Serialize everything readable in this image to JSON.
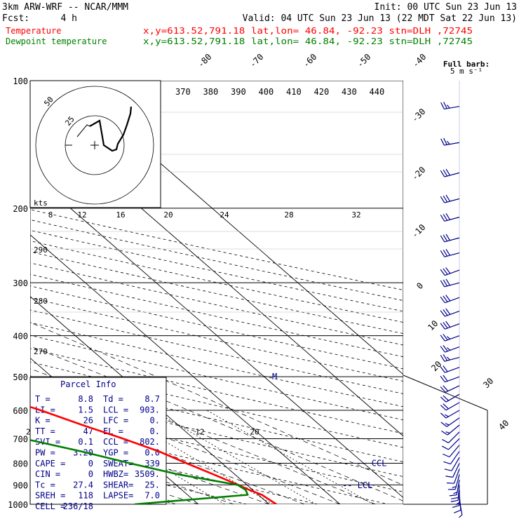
{
  "header": {
    "model": "3km ARW-WRF -- NCAR/MMM",
    "init": "Init: 00 UTC Sun 23 Jun 13",
    "fcst_label": "Fcst:",
    "fcst_value": "4 h",
    "valid": "Valid: 04 UTC Sun 23 Jun 13 (22 MDT Sat 22 Jun 13)"
  },
  "legend": {
    "temperature": {
      "label": "Temperature",
      "info": "x,y=613.52,791.18   lat,lon= 46.84, -92.23  stn=DLH ,72745",
      "color": "#ff0000"
    },
    "dewpoint": {
      "label": "Dewpoint temperature",
      "info": "x,y=613.52,791.18   lat,lon= 46.84, -92.23  stn=DLH ,72745",
      "color": "#008000"
    }
  },
  "barb_key": {
    "line1": "Full barb:",
    "line2": "5 m s⁻¹"
  },
  "hodograph": {
    "kts_label": "kts",
    "ring_labels": [
      "25",
      "50"
    ]
  },
  "parcel_info": {
    "title": "Parcel Info",
    "rows": [
      [
        "T  =",
        "8.8",
        "Td =",
        "8.7"
      ],
      [
        "LI =",
        "1.5",
        "LCL =",
        "903."
      ],
      [
        "K  =",
        "26",
        "LFC =",
        "0."
      ],
      [
        "TT =",
        "47",
        "EL  =",
        "0."
      ],
      [
        "SVI =",
        "0.1",
        "CCL =",
        "802."
      ],
      [
        "PW =",
        "3.20",
        "YGP =",
        "0.0"
      ],
      [
        "CAPE =",
        "0",
        "SWEAT=",
        "339"
      ],
      [
        "CIN =",
        "0",
        "HWBZ=",
        "3509."
      ],
      [
        "Tc =",
        "27.4",
        "SHEAR=",
        "25."
      ],
      [
        "SREH =",
        "118",
        "LAPSE=",
        "7.0"
      ],
      [
        "CELL =",
        "236/18",
        "",
        ""
      ]
    ]
  },
  "markers": {
    "ccl": "CCL",
    "lcl": "LCL",
    "m": "M"
  },
  "chart_data": {
    "type": "line",
    "title": "",
    "ylabel": "",
    "pressure_levels": [
      100,
      200,
      300,
      400,
      500,
      600,
      700,
      800,
      900,
      1000
    ],
    "isotherm_labels": [
      -80,
      -70,
      -60,
      -50,
      -40,
      -30,
      -20,
      -10,
      0,
      10,
      20,
      30,
      40
    ],
    "theta_labels": [
      370,
      380,
      390,
      400,
      410,
      420,
      430,
      440
    ],
    "theta_side_labels": [
      290,
      280,
      270
    ],
    "mixing_ratio_labels": [
      "2",
      "3",
      "5",
      "8",
      "12",
      "20"
    ],
    "hodo_speed_labels": [
      "8",
      "12",
      "16",
      "20",
      "24",
      "28",
      "32"
    ],
    "series": [
      {
        "name": "Temperature",
        "color": "#ff0000",
        "points": [
          [
            1000,
            11.0
          ],
          [
            950,
            10.5
          ],
          [
            925,
            9.5
          ],
          [
            900,
            8.8
          ],
          [
            850,
            7.0
          ],
          [
            800,
            5.0
          ],
          [
            750,
            3.0
          ],
          [
            700,
            0.0
          ],
          [
            650,
            -3.5
          ],
          [
            600,
            -7.0
          ],
          [
            550,
            -11.5
          ],
          [
            500,
            -15.0
          ],
          [
            450,
            -19.0
          ],
          [
            400,
            -23.5
          ],
          [
            350,
            -30.0
          ],
          [
            300,
            -36.5
          ],
          [
            250,
            -44.0
          ],
          [
            200,
            -52.5
          ],
          [
            175,
            -58.0
          ],
          [
            150,
            -61.0
          ],
          [
            125,
            -57.5
          ],
          [
            100,
            -54.0
          ]
        ]
      },
      {
        "name": "Dewpoint temperature",
        "color": "#008000",
        "points": [
          [
            1000,
            -9.0
          ],
          [
            950,
            8.5
          ],
          [
            925,
            9.0
          ],
          [
            900,
            8.7
          ],
          [
            850,
            2.0
          ],
          [
            800,
            -3.0
          ],
          [
            750,
            -8.0
          ],
          [
            700,
            -14.0
          ],
          [
            650,
            -13.0
          ],
          [
            600,
            -16.0
          ],
          [
            550,
            -18.5
          ],
          [
            500,
            -23.0
          ],
          [
            450,
            -33.0
          ],
          [
            400,
            -43.0
          ],
          [
            350,
            -41.0
          ],
          [
            300,
            -53.0
          ],
          [
            250,
            -62.0
          ],
          [
            200,
            -69.0
          ],
          [
            175,
            -75.0
          ],
          [
            150,
            -84.0
          ],
          [
            125,
            -86.0
          ],
          [
            100,
            -82.0
          ]
        ]
      }
    ],
    "wind_levels_hpa": [
      115,
      140,
      165,
      190,
      210,
      235,
      255,
      280,
      300,
      325,
      350,
      375,
      400,
      425,
      450,
      475,
      500,
      525,
      550,
      575,
      600,
      625,
      650,
      675,
      700,
      725,
      750,
      775,
      800,
      825,
      850,
      875,
      900,
      925,
      950,
      975
    ],
    "wind_direction_deg": [
      260,
      260,
      255,
      255,
      255,
      255,
      255,
      250,
      255,
      250,
      250,
      250,
      250,
      250,
      255,
      250,
      250,
      245,
      240,
      240,
      240,
      235,
      230,
      225,
      225,
      220,
      215,
      210,
      205,
      200,
      195,
      190,
      185,
      180,
      175,
      170
    ],
    "wind_speed_ms": [
      14,
      14,
      15,
      15,
      15,
      15,
      15,
      16,
      16,
      16,
      15,
      15,
      14,
      14,
      13,
      12,
      11,
      10,
      10,
      10,
      9,
      8,
      8,
      7,
      7,
      7,
      6,
      6,
      6,
      7,
      8,
      9,
      10,
      8,
      6,
      4
    ]
  }
}
